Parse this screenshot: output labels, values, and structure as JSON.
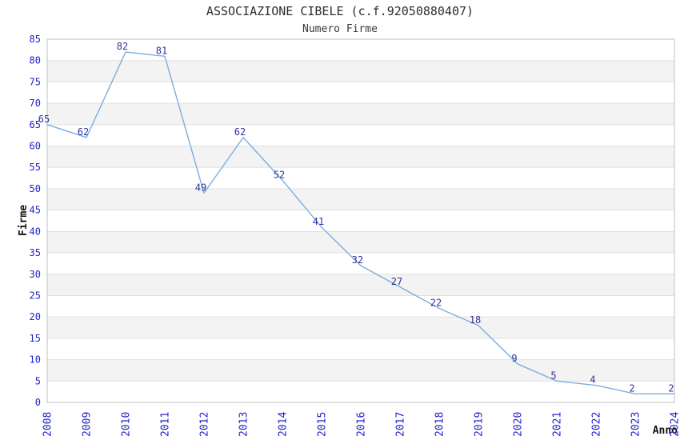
{
  "page": {
    "title": "ASSOCIAZIONE CIBELE (c.f.92050880407)",
    "subtitle": "Numero Firme"
  },
  "chart_data": {
    "type": "line",
    "title": "ASSOCIAZIONE CIBELE (c.f.92050880407)",
    "subtitle": "Numero Firme",
    "xlabel": "Anno",
    "ylabel": "Firme",
    "categories": [
      "2008",
      "2009",
      "2010",
      "2011",
      "2012",
      "2013",
      "2014",
      "2015",
      "2016",
      "2017",
      "2018",
      "2019",
      "2020",
      "2021",
      "2022",
      "2023",
      "2024"
    ],
    "values": [
      65,
      62,
      82,
      81,
      49,
      62,
      52,
      41,
      32,
      27,
      22,
      18,
      9,
      5,
      4,
      2,
      2
    ],
    "ylim": [
      0,
      85
    ],
    "ytick_step": 5,
    "grid": true,
    "legend": "none",
    "band_stripes": true,
    "colors": {
      "line": "#7aaede",
      "point_label": "#32329b",
      "tick_label": "#2222cc",
      "title": "#2e2e2e",
      "subtitle": "#3a3a3a",
      "axis_label": "#111111",
      "band": "#f3f3f3",
      "gridline": "#e0e0e0",
      "border": "#c0c0c0",
      "background": "#ffffff"
    }
  }
}
